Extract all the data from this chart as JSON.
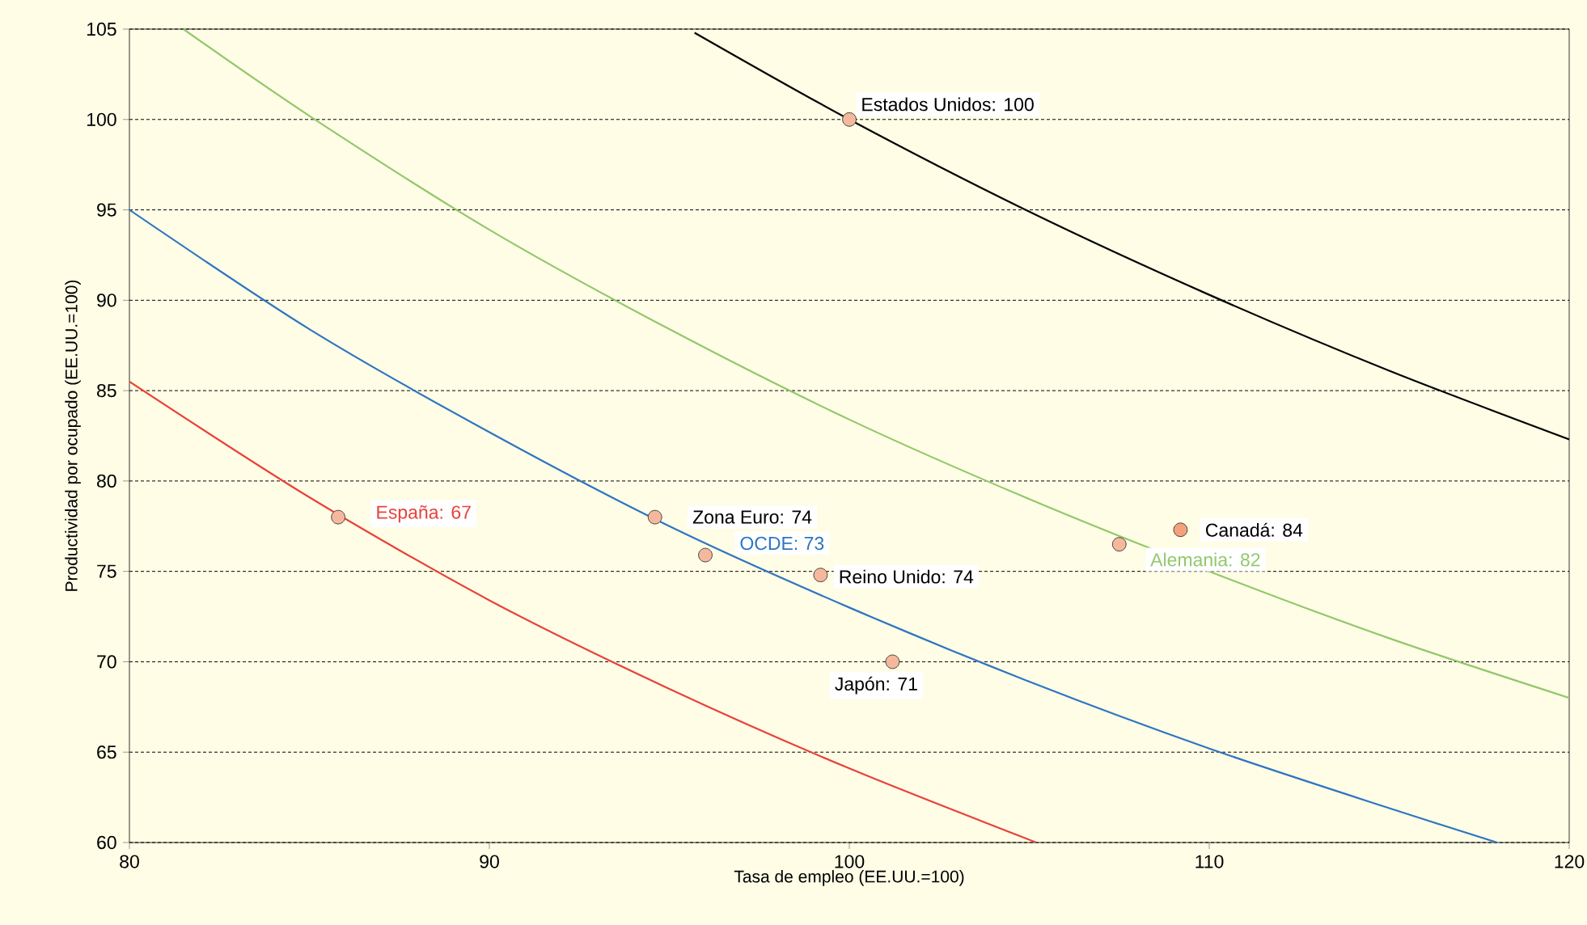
{
  "chart_data": {
    "type": "scatter",
    "xlabel": "Tasa de empleo (EE.UU.=100)",
    "ylabel": "Productividad por ocupado (EE.UU.=100)",
    "xlim": [
      80,
      120
    ],
    "xticks": [
      80,
      90,
      100,
      110,
      120
    ],
    "ylim": [
      60,
      105
    ],
    "yticks": [
      60,
      65,
      70,
      75,
      80,
      85,
      90,
      95,
      100,
      105
    ],
    "grid": "y",
    "series": [
      {
        "type": "line",
        "color": "#000000",
        "x": [
          95.7,
          100,
          105,
          110,
          115,
          120
        ],
        "values": [
          104.8,
          100,
          94.9,
          90.3,
          86.1,
          82.3
        ]
      },
      {
        "type": "line",
        "color": "#92c86b",
        "x": [
          81.5,
          85,
          90,
          95,
          100,
          105,
          110,
          115,
          120
        ],
        "values": [
          105,
          100.2,
          93.9,
          88.4,
          83.4,
          79.0,
          75.0,
          71.3,
          68.0
        ]
      },
      {
        "type": "line",
        "color": "#2e75c0",
        "x": [
          80,
          85,
          90,
          95,
          100,
          105,
          110,
          115,
          118
        ],
        "values": [
          95,
          88.4,
          82.7,
          77.5,
          73.0,
          68.9,
          65.2,
          61.9,
          60
        ]
      },
      {
        "type": "line",
        "color": "#e8423a",
        "x": [
          80,
          85,
          90,
          95,
          100,
          105.2
        ],
        "values": [
          85.5,
          79.1,
          73.4,
          68.5,
          64.1,
          60
        ]
      },
      {
        "marker": "circle",
        "x": [
          85.8,
          94.6,
          96.0,
          99.2,
          101.2,
          100,
          107.5,
          109.2
        ],
        "values": [
          78,
          78,
          75.9,
          74.8,
          70.0,
          100,
          76.5,
          77.3
        ],
        "colors": [
          "#f6b89c",
          "#f6b89c",
          "#f6b89c",
          "#f6b89c",
          "#f6b89c",
          "#f6b89c",
          "#f6b89c",
          "#f4a17c"
        ]
      }
    ],
    "annotations": [
      {
        "text": "España: 67",
        "x": 85.8,
        "y": 78
      },
      {
        "text": "Zona Euro: 74",
        "x": 94.6,
        "y": 78
      },
      {
        "text": "OCDE: 73",
        "x": 96.0,
        "y": 75.9
      },
      {
        "text": "Reino Unido: 74",
        "x": 99.2,
        "y": 74.8
      },
      {
        "text": "Japón: 71",
        "x": 101.2,
        "y": 70.0
      },
      {
        "text": "Estados Unidos: 100",
        "x": 100,
        "y": 100
      },
      {
        "text": "Alemania: 82",
        "x": 107.5,
        "y": 76.5
      },
      {
        "text": "Canadá: 84",
        "x": 109.2,
        "y": 77.3
      }
    ]
  }
}
